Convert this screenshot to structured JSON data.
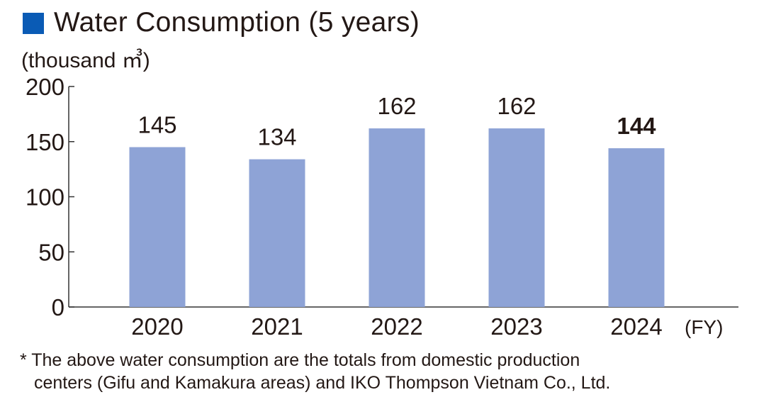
{
  "title": "Water Consumption (5 years)",
  "unit_label": "(thousand ㎥)",
  "x_unit_label": "(FY)",
  "footnote": {
    "line1": "* The above water consumption are the totals from domestic production",
    "line2": "centers (Gifu and Kamakura areas) and IKO Thompson Vietnam Co., Ltd."
  },
  "colors": {
    "bar": "#8ea3d6",
    "title_square": "#0a5bb5",
    "axis": "#333333",
    "text": "#231815"
  },
  "chart_data": {
    "type": "bar",
    "title": "Water Consumption (5 years)",
    "xlabel": "(FY)",
    "ylabel": "(thousand ㎥)",
    "categories": [
      "2020",
      "2021",
      "2022",
      "2023",
      "2024"
    ],
    "values": [
      145,
      134,
      162,
      162,
      144
    ],
    "value_labels": [
      "145",
      "134",
      "162",
      "162",
      "144"
    ],
    "highlight_index": 4,
    "ylim": [
      0,
      200
    ],
    "yticks": [
      0,
      50,
      100,
      150,
      200
    ],
    "ytick_labels": [
      "0",
      "50",
      "100",
      "150",
      "200"
    ],
    "grid": false
  }
}
